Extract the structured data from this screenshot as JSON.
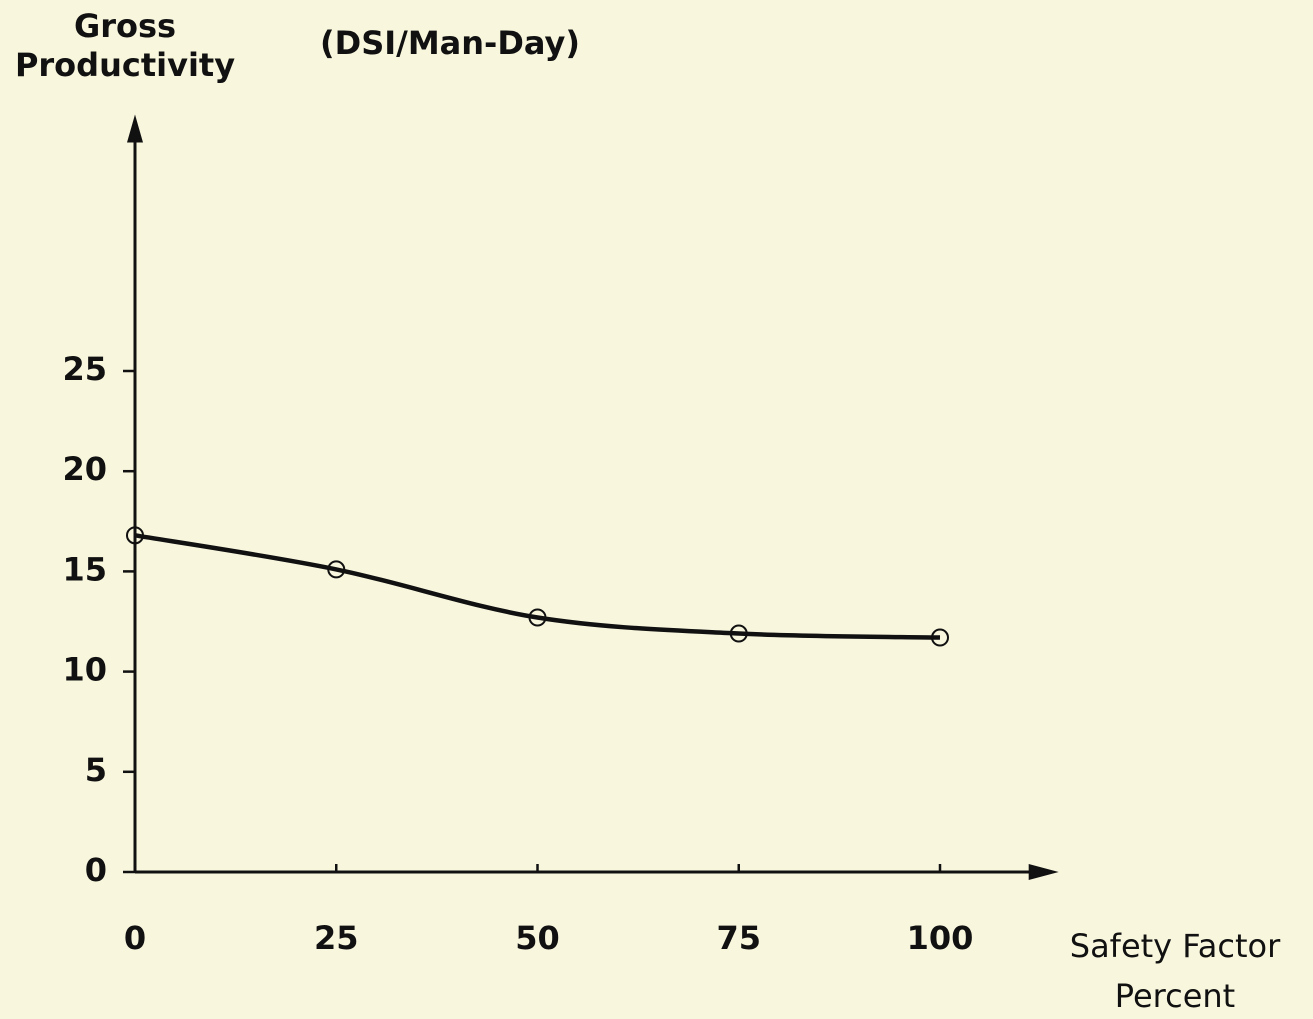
{
  "chart_data": {
    "type": "line",
    "y_label": "Gross Productivity",
    "y_unit": "(DSI/Man-Day)",
    "x_label": "Safety Factor Percent",
    "x": [
      0,
      25,
      50,
      75,
      100
    ],
    "series": [
      {
        "color": "#111111",
        "values": [
          16.8,
          15.1,
          12.7,
          11.9,
          11.7
        ]
      }
    ],
    "xlim": [
      0,
      114
    ],
    "ylim": [
      0,
      37.5
    ],
    "xticks": [
      0,
      25,
      50,
      75,
      100
    ],
    "yticks": [
      0,
      5,
      10,
      15,
      20,
      25
    ],
    "markers": true,
    "smooth": true
  }
}
